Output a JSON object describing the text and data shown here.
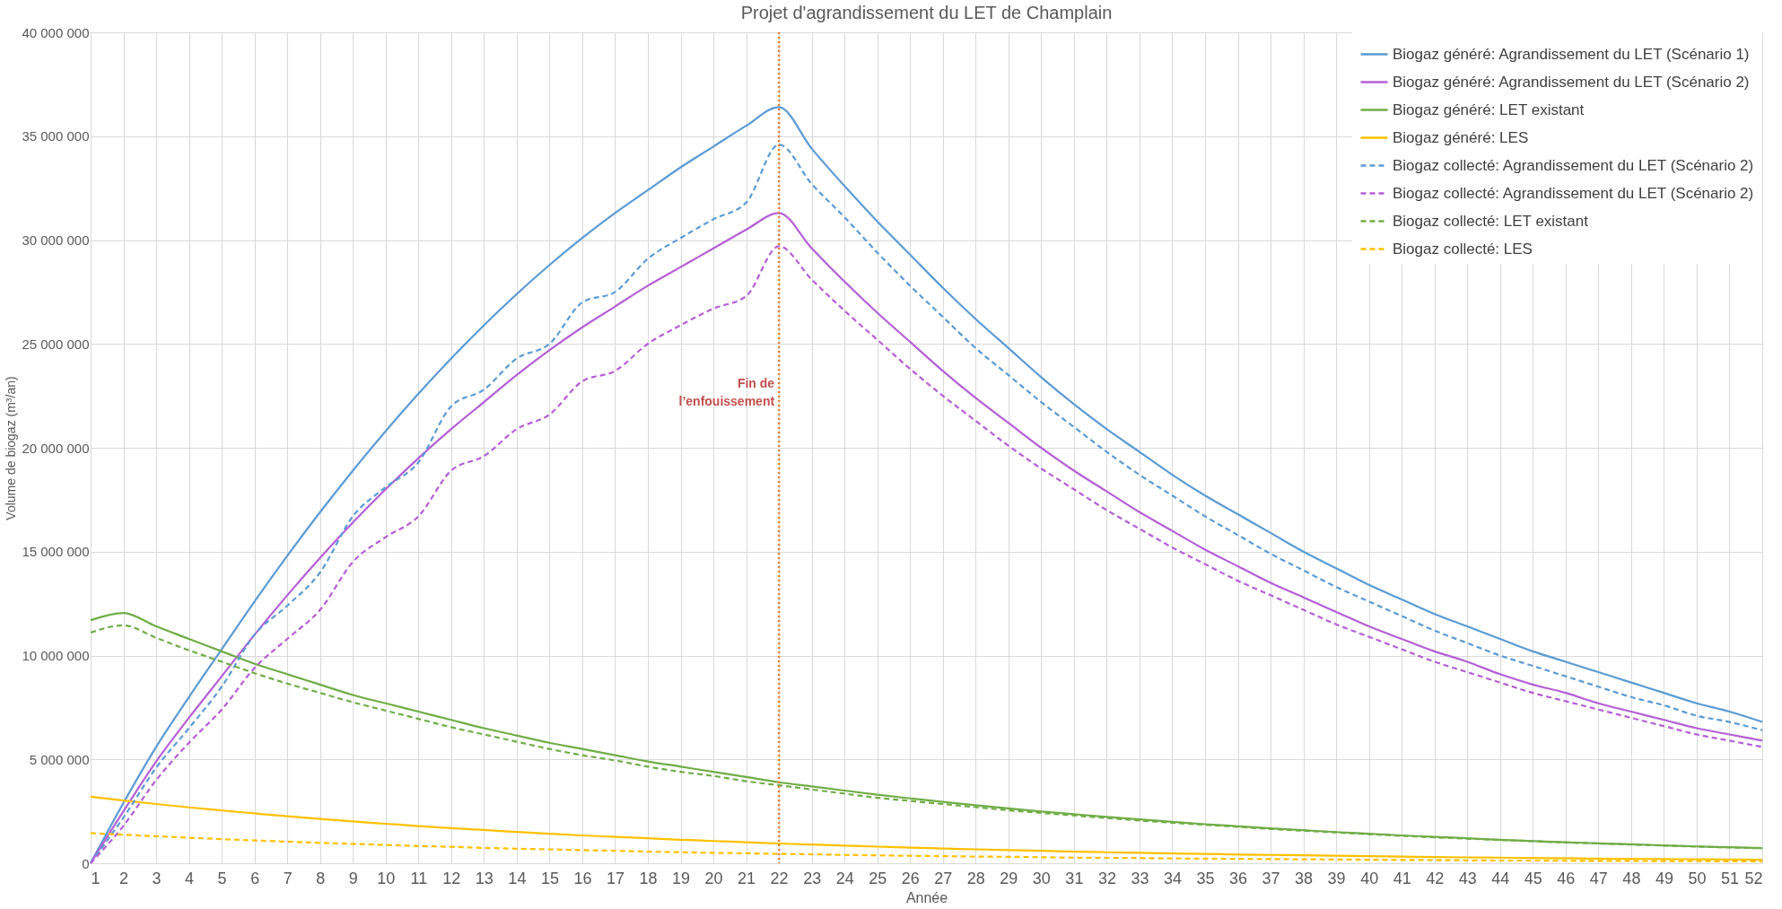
{
  "chart_data": {
    "type": "line",
    "title": "Projet d'agrandissement du LET de Champlain",
    "xlabel": "Année",
    "ylabel": "Volume de biogaz (m³/an)",
    "x": [
      1,
      2,
      3,
      4,
      5,
      6,
      7,
      8,
      9,
      10,
      11,
      12,
      13,
      14,
      15,
      16,
      17,
      18,
      19,
      20,
      21,
      22,
      23,
      24,
      25,
      26,
      27,
      28,
      29,
      30,
      31,
      32,
      33,
      34,
      35,
      36,
      37,
      38,
      39,
      40,
      41,
      42,
      43,
      44,
      45,
      46,
      47,
      48,
      49,
      50,
      51,
      52
    ],
    "xlim": [
      1,
      52
    ],
    "xticks": [
      1,
      2,
      3,
      4,
      5,
      6,
      7,
      8,
      9,
      10,
      11,
      12,
      13,
      14,
      15,
      16,
      17,
      18,
      19,
      20,
      21,
      22,
      23,
      24,
      25,
      26,
      27,
      28,
      29,
      30,
      31,
      32,
      33,
      34,
      35,
      36,
      37,
      38,
      39,
      40,
      41,
      42,
      43,
      44,
      45,
      46,
      47,
      48,
      49,
      50,
      51,
      52
    ],
    "ylim": [
      0,
      40000000
    ],
    "yticks": [
      0,
      {
        "value": 5000000,
        "label": "5 000 000"
      },
      {
        "value": 10000000,
        "label": "10 000 000"
      },
      {
        "value": 15000000,
        "label": "15 000 000"
      },
      {
        "value": 20000000,
        "label": "20 000 000"
      },
      {
        "value": 25000000,
        "label": "25 000 000"
      },
      {
        "value": 30000000,
        "label": "30 000 000"
      },
      {
        "value": 35000000,
        "label": "35 000 000"
      },
      {
        "value": 40000000,
        "label": "40 000 000"
      }
    ],
    "grid": true,
    "legend": "top right",
    "marker": "none",
    "ref_lines": [
      {
        "axis": "x",
        "value": 22,
        "label": "Fin de\nl’enfouissement",
        "color": "#ed7d31",
        "line_style": "dotted"
      }
    ],
    "series": [
      {
        "name": "Biogaz généré: Agrandissement du LET (Scénario 1)",
        "color": "#5b9bd5",
        "line_style": "solid",
        "values": [
          0,
          2900000,
          5600000,
          8000000,
          10300000,
          12600000,
          14800000,
          16900000,
          18900000,
          20800000,
          22600000,
          24300000,
          25900000,
          27400000,
          28800000,
          30100000,
          31300000,
          32400000,
          33500000,
          34500000,
          35500000,
          36400000,
          34400000,
          32600000,
          30900000,
          29300000,
          27700000,
          26200000,
          24800000,
          23400000,
          22100000,
          20900000,
          19800000,
          18700000,
          17700000,
          16800000,
          15900000,
          15000000,
          14200000,
          13400000,
          12700000,
          12000000,
          11400000,
          10800000,
          10200000,
          9700000,
          9200000,
          8700000,
          8200000,
          7700000,
          7300000,
          6800000
        ]
      },
      {
        "name": "Biogaz généré: Agrandissement du LET (Scénario 2)",
        "color": "#b55fd6",
        "line_style": "solid",
        "values": [
          0,
          2500000,
          4900000,
          7000000,
          9000000,
          11000000,
          12900000,
          14700000,
          16400000,
          18000000,
          19500000,
          20900000,
          22200000,
          23500000,
          24700000,
          25800000,
          26800000,
          27800000,
          28700000,
          29600000,
          30500000,
          31300000,
          29600000,
          28000000,
          26500000,
          25100000,
          23700000,
          22400000,
          21200000,
          20000000,
          18900000,
          17900000,
          16900000,
          16000000,
          15100000,
          14300000,
          13500000,
          12800000,
          12100000,
          11400000,
          10800000,
          10200000,
          9700000,
          9100000,
          8600000,
          8200000,
          7700000,
          7300000,
          6900000,
          6500000,
          6200000,
          5900000
        ]
      },
      {
        "name": "Biogaz généré: LET existant",
        "color": "#70ad47",
        "line_style": "solid",
        "values": [
          11700000,
          12050000,
          11400000,
          10800000,
          10200000,
          9600000,
          9100000,
          8600000,
          8100000,
          7700000,
          7300000,
          6900000,
          6500000,
          6150000,
          5800000,
          5500000,
          5200000,
          4900000,
          4650000,
          4400000,
          4150000,
          3900000,
          3700000,
          3500000,
          3300000,
          3120000,
          2950000,
          2790000,
          2640000,
          2490000,
          2360000,
          2230000,
          2110000,
          1990000,
          1880000,
          1780000,
          1680000,
          1590000,
          1500000,
          1420000,
          1340000,
          1270000,
          1200000,
          1130000,
          1070000,
          1010000,
          960000,
          910000,
          860000,
          810000,
          770000,
          730000
        ]
      },
      {
        "name": "Biogaz généré: LES",
        "color": "#ffc000",
        "line_style": "solid",
        "values": [
          3200000,
          3020000,
          2850000,
          2690000,
          2540000,
          2400000,
          2260000,
          2130000,
          2010000,
          1900000,
          1790000,
          1690000,
          1600000,
          1510000,
          1420000,
          1340000,
          1270000,
          1200000,
          1130000,
          1070000,
          1010000,
          950000,
          900000,
          850000,
          800000,
          750000,
          710000,
          670000,
          630000,
          600000,
          560000,
          530000,
          500000,
          470000,
          450000,
          420000,
          400000,
          380000,
          360000,
          340000,
          320000,
          300000,
          280000,
          270000,
          250000,
          240000,
          220000,
          210000,
          200000,
          190000,
          180000,
          170000
        ]
      },
      {
        "name": "Biogaz collecté: Agrandissement du LET (Scénario 2)",
        "color": "#5b9bd5",
        "line_style": "dashed",
        "values": [
          0,
          2200000,
          4600000,
          6500000,
          8500000,
          11000000,
          12400000,
          14000000,
          16700000,
          18100000,
          19300000,
          22000000,
          22800000,
          24300000,
          25000000,
          27000000,
          27500000,
          29100000,
          30100000,
          31000000,
          31800000,
          34600000,
          32700000,
          31100000,
          29400000,
          27800000,
          26300000,
          24800000,
          23500000,
          22200000,
          21000000,
          19800000,
          18700000,
          17700000,
          16700000,
          15800000,
          14900000,
          14100000,
          13300000,
          12600000,
          11900000,
          11200000,
          10600000,
          10000000,
          9500000,
          9000000,
          8500000,
          8000000,
          7600000,
          7100000,
          6800000,
          6400000
        ]
      },
      {
        "name": "Biogaz collecté: Agrandissement du LET (Scénario 2)",
        "color": "#b55fd6",
        "line_style": "dashed",
        "values": [
          0,
          1800000,
          4000000,
          5800000,
          7400000,
          9400000,
          10800000,
          12200000,
          14500000,
          15700000,
          16700000,
          18900000,
          19600000,
          20900000,
          21600000,
          23200000,
          23700000,
          25000000,
          25900000,
          26700000,
          27300000,
          29700000,
          28100000,
          26600000,
          25200000,
          23800000,
          22500000,
          21300000,
          20100000,
          19000000,
          18000000,
          17000000,
          16100000,
          15200000,
          14400000,
          13600000,
          12900000,
          12200000,
          11500000,
          10900000,
          10300000,
          9700000,
          9200000,
          8700000,
          8200000,
          7800000,
          7400000,
          7000000,
          6600000,
          6200000,
          5900000,
          5600000
        ]
      },
      {
        "name": "Biogaz collecté: LET existant",
        "color": "#70ad47",
        "line_style": "dashed",
        "values": [
          11100000,
          11450000,
          10850000,
          10250000,
          9700000,
          9150000,
          8650000,
          8200000,
          7750000,
          7350000,
          6950000,
          6550000,
          6200000,
          5850000,
          5500000,
          5200000,
          4950000,
          4650000,
          4400000,
          4200000,
          3950000,
          3750000,
          3550000,
          3350000,
          3150000,
          3000000,
          2850000,
          2700000,
          2550000,
          2420000,
          2300000,
          2180000,
          2060000,
          1950000,
          1850000,
          1750000,
          1650000,
          1560000,
          1480000,
          1400000,
          1320000,
          1250000,
          1180000,
          1120000,
          1060000,
          1000000,
          950000,
          900000,
          850000,
          800000,
          760000,
          720000
        ]
      },
      {
        "name": "Biogaz collecté: LES",
        "color": "#ffc000",
        "line_style": "dashed",
        "values": [
          1450000,
          1370000,
          1300000,
          1230000,
          1160000,
          1100000,
          1040000,
          980000,
          930000,
          880000,
          830000,
          790000,
          740000,
          700000,
          670000,
          630000,
          600000,
          560000,
          530000,
          500000,
          480000,
          450000,
          430000,
          400000,
          380000,
          360000,
          340000,
          320000,
          310000,
          290000,
          270000,
          260000,
          250000,
          230000,
          220000,
          210000,
          200000,
          190000,
          180000,
          170000,
          160000,
          150000,
          140000,
          130000,
          130000,
          120000,
          110000,
          110000,
          100000,
          100000,
          90000,
          90000
        ]
      }
    ]
  }
}
